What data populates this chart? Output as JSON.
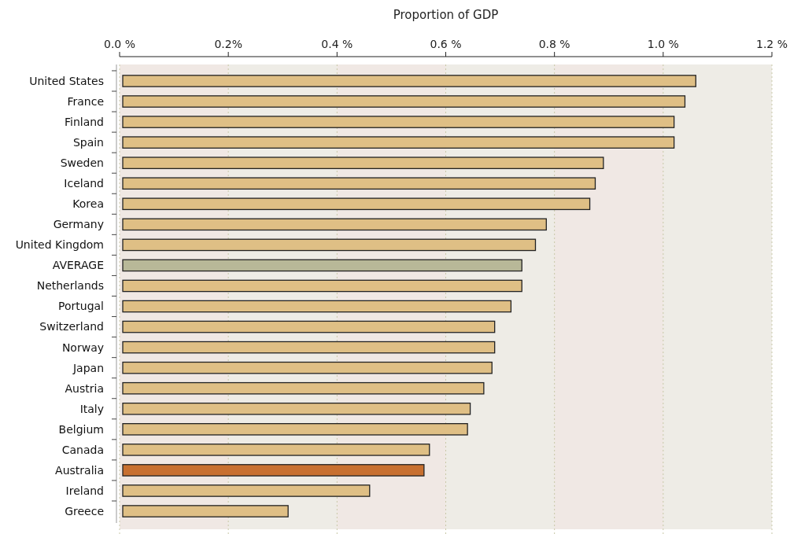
{
  "chart_data": {
    "type": "bar",
    "orientation": "horizontal",
    "xlabel": "Proportion of GDP",
    "categories": [
      "United States",
      "France",
      "Finland",
      "Spain",
      "Sweden",
      "Iceland",
      "Korea",
      "Germany",
      "United Kingdom",
      "AVERAGE",
      "Netherlands",
      "Portugal",
      "Switzerland",
      "Norway",
      "Japan",
      "Austria",
      "Italy",
      "Belgium",
      "Canada",
      "Australia",
      "Ireland",
      "Greece"
    ],
    "values": [
      1.06,
      1.04,
      1.02,
      1.02,
      0.89,
      0.875,
      0.865,
      0.785,
      0.765,
      0.74,
      0.74,
      0.72,
      0.69,
      0.69,
      0.685,
      0.67,
      0.645,
      0.64,
      0.57,
      0.56,
      0.46,
      0.31
    ],
    "colors": [
      "#dfbf85",
      "#dfbf85",
      "#dfbf85",
      "#dfbf85",
      "#dfbf85",
      "#dfbf85",
      "#dfbf85",
      "#dfbf85",
      "#dfbf85",
      "#b8b898",
      "#dfbf85",
      "#dfbf85",
      "#dfbf85",
      "#dfbf85",
      "#dfbf85",
      "#dfbf85",
      "#dfbf85",
      "#dfbf85",
      "#dfbf85",
      "#c87030",
      "#dfbf85",
      "#dfbf85"
    ],
    "xlim": [
      0,
      1.2
    ],
    "xticks": [
      {
        "value": 0,
        "label": "0.0 %"
      },
      {
        "value": 0.2,
        "label": "0.2%"
      },
      {
        "value": 0.4,
        "label": "0.4 %"
      },
      {
        "value": 0.6,
        "label": "0.6 %"
      },
      {
        "value": 0.8,
        "label": "0.8 %"
      },
      {
        "value": 1.0,
        "label": "1.0 %"
      },
      {
        "value": 1.2,
        "label": "1.2 %"
      }
    ],
    "grid": "x"
  }
}
